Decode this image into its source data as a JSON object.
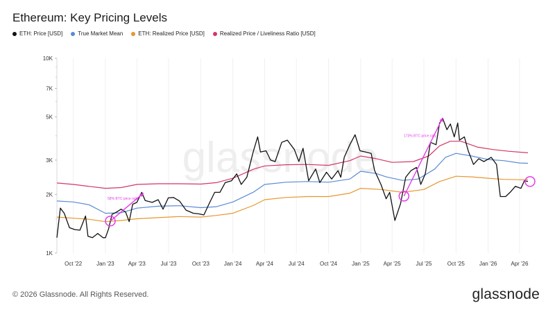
{
  "chart_data": {
    "type": "line",
    "title": "Ethereum: Key Pricing Levels",
    "xlabel": "",
    "ylabel": "",
    "y_scale": "log",
    "ylim": [
      1000,
      10000
    ],
    "y_ticks": [
      {
        "value": 1000,
        "label": "1K"
      },
      {
        "value": 2000,
        "label": "2K"
      },
      {
        "value": 3000,
        "label": "3K"
      },
      {
        "value": 5000,
        "label": "5K"
      },
      {
        "value": 7000,
        "label": "7K"
      },
      {
        "value": 10000,
        "label": "10K"
      }
    ],
    "xlim": [
      "2022-08-15",
      "2026-05-05"
    ],
    "x_ticks": [
      {
        "value": "2022-10-01",
        "label": "Oct '22"
      },
      {
        "value": "2023-01-01",
        "label": "Jan '23"
      },
      {
        "value": "2023-04-01",
        "label": "Apr '23"
      },
      {
        "value": "2023-07-01",
        "label": "Jul '23"
      },
      {
        "value": "2023-10-01",
        "label": "Oct '23"
      },
      {
        "value": "2024-01-01",
        "label": "Jan '24"
      },
      {
        "value": "2024-04-01",
        "label": "Apr '24"
      },
      {
        "value": "2024-07-01",
        "label": "Jul '24"
      },
      {
        "value": "2024-10-01",
        "label": "Oct '24"
      },
      {
        "value": "2025-01-01",
        "label": "Jan '25"
      },
      {
        "value": "2025-04-01",
        "label": "Apr '25"
      },
      {
        "value": "2025-07-01",
        "label": "Jul '25"
      },
      {
        "value": "2025-10-01",
        "label": "Oct '25"
      },
      {
        "value": "2026-01-01",
        "label": "Jan '26"
      },
      {
        "value": "2026-04-01",
        "label": "Apr '26"
      }
    ],
    "grid": "vertical",
    "legend_position": "top-left",
    "series": [
      {
        "name": "ETH: Price [USD]",
        "color": "#111111",
        "points": [
          [
            "2022-08-15",
            1200
          ],
          [
            "2022-08-25",
            1700
          ],
          [
            "2022-09-05",
            1600
          ],
          [
            "2022-09-20",
            1350
          ],
          [
            "2022-10-05",
            1320
          ],
          [
            "2022-10-20",
            1310
          ],
          [
            "2022-11-05",
            1550
          ],
          [
            "2022-11-12",
            1220
          ],
          [
            "2022-11-25",
            1200
          ],
          [
            "2022-12-10",
            1260
          ],
          [
            "2022-12-25",
            1200
          ],
          [
            "2023-01-01",
            1200
          ],
          [
            "2023-01-10",
            1330
          ],
          [
            "2023-01-20",
            1580
          ],
          [
            "2023-02-01",
            1620
          ],
          [
            "2023-02-15",
            1680
          ],
          [
            "2023-02-28",
            1620
          ],
          [
            "2023-03-10",
            1450
          ],
          [
            "2023-03-20",
            1780
          ],
          [
            "2023-04-01",
            1820
          ],
          [
            "2023-04-15",
            2050
          ],
          [
            "2023-04-25",
            1860
          ],
          [
            "2023-05-15",
            1820
          ],
          [
            "2023-06-01",
            1880
          ],
          [
            "2023-06-15",
            1680
          ],
          [
            "2023-06-30",
            1920
          ],
          [
            "2023-07-15",
            1930
          ],
          [
            "2023-08-01",
            1850
          ],
          [
            "2023-08-20",
            1660
          ],
          [
            "2023-09-10",
            1600
          ],
          [
            "2023-09-25",
            1590
          ],
          [
            "2023-10-10",
            1570
          ],
          [
            "2023-10-25",
            1790
          ],
          [
            "2023-11-10",
            2050
          ],
          [
            "2023-11-25",
            2050
          ],
          [
            "2023-12-10",
            2300
          ],
          [
            "2023-12-28",
            2350
          ],
          [
            "2024-01-12",
            2550
          ],
          [
            "2024-01-25",
            2250
          ],
          [
            "2024-02-10",
            2450
          ],
          [
            "2024-02-28",
            3300
          ],
          [
            "2024-03-12",
            3950
          ],
          [
            "2024-03-20",
            3300
          ],
          [
            "2024-04-05",
            3350
          ],
          [
            "2024-04-18",
            3000
          ],
          [
            "2024-05-01",
            2950
          ],
          [
            "2024-05-20",
            3700
          ],
          [
            "2024-06-05",
            3800
          ],
          [
            "2024-06-25",
            3400
          ],
          [
            "2024-07-08",
            2950
          ],
          [
            "2024-07-20",
            3450
          ],
          [
            "2024-08-05",
            2350
          ],
          [
            "2024-08-25",
            2700
          ],
          [
            "2024-09-06",
            2300
          ],
          [
            "2024-09-25",
            2600
          ],
          [
            "2024-10-10",
            2400
          ],
          [
            "2024-10-28",
            2650
          ],
          [
            "2024-11-05",
            2450
          ],
          [
            "2024-11-15",
            3100
          ],
          [
            "2024-12-01",
            3600
          ],
          [
            "2024-12-16",
            4050
          ],
          [
            "2024-12-30",
            3350
          ],
          [
            "2025-01-15",
            3300
          ],
          [
            "2025-01-31",
            3250
          ],
          [
            "2025-02-10",
            2650
          ],
          [
            "2025-02-28",
            2250
          ],
          [
            "2025-03-15",
            1900
          ],
          [
            "2025-03-25",
            2050
          ],
          [
            "2025-04-09",
            1470
          ],
          [
            "2025-04-25",
            1790
          ],
          [
            "2025-05-10",
            2450
          ],
          [
            "2025-05-25",
            2650
          ],
          [
            "2025-06-10",
            2750
          ],
          [
            "2025-06-22",
            2250
          ],
          [
            "2025-07-05",
            2550
          ],
          [
            "2025-07-20",
            3700
          ],
          [
            "2025-08-05",
            3600
          ],
          [
            "2025-08-15",
            4650
          ],
          [
            "2025-08-24",
            4900
          ],
          [
            "2025-09-05",
            4300
          ],
          [
            "2025-09-15",
            4600
          ],
          [
            "2025-09-26",
            3950
          ],
          [
            "2025-10-06",
            4650
          ],
          [
            "2025-10-11",
            3800
          ],
          [
            "2025-10-25",
            3950
          ],
          [
            "2025-11-05",
            3350
          ],
          [
            "2025-11-20",
            2850
          ],
          [
            "2025-12-05",
            3050
          ],
          [
            "2025-12-20",
            2950
          ],
          [
            "2026-01-10",
            3100
          ],
          [
            "2026-01-25",
            2850
          ],
          [
            "2026-02-05",
            1950
          ],
          [
            "2026-02-20",
            1950
          ],
          [
            "2026-03-05",
            2050
          ],
          [
            "2026-03-20",
            2200
          ],
          [
            "2026-04-05",
            2150
          ],
          [
            "2026-04-15",
            2350
          ],
          [
            "2026-04-25",
            2330
          ]
        ]
      },
      {
        "name": "True Market Mean",
        "color": "#5a8ad6",
        "points": [
          [
            "2022-08-15",
            1850
          ],
          [
            "2022-10-01",
            1830
          ],
          [
            "2022-11-15",
            1770
          ],
          [
            "2023-01-01",
            1600
          ],
          [
            "2023-02-15",
            1610
          ],
          [
            "2023-04-01",
            1700
          ],
          [
            "2023-06-01",
            1740
          ],
          [
            "2023-08-01",
            1750
          ],
          [
            "2023-10-01",
            1710
          ],
          [
            "2023-11-15",
            1730
          ],
          [
            "2024-01-01",
            1830
          ],
          [
            "2024-03-01",
            2060
          ],
          [
            "2024-04-01",
            2250
          ],
          [
            "2024-06-01",
            2310
          ],
          [
            "2024-08-01",
            2330
          ],
          [
            "2024-10-01",
            2310
          ],
          [
            "2024-12-01",
            2400
          ],
          [
            "2025-01-01",
            2630
          ],
          [
            "2025-02-15",
            2560
          ],
          [
            "2025-03-15",
            2460
          ],
          [
            "2025-05-01",
            2360
          ],
          [
            "2025-06-15",
            2400
          ],
          [
            "2025-08-01",
            2700
          ],
          [
            "2025-09-01",
            3100
          ],
          [
            "2025-10-01",
            3250
          ],
          [
            "2025-11-15",
            3150
          ],
          [
            "2026-01-01",
            3020
          ],
          [
            "2026-02-15",
            2980
          ],
          [
            "2026-04-01",
            2900
          ],
          [
            "2026-04-25",
            2890
          ]
        ]
      },
      {
        "name": "ETH: Realized Price [USD]",
        "color": "#e8962e",
        "points": [
          [
            "2022-08-15",
            1530
          ],
          [
            "2022-10-01",
            1510
          ],
          [
            "2022-11-15",
            1490
          ],
          [
            "2023-01-01",
            1450
          ],
          [
            "2023-02-15",
            1470
          ],
          [
            "2023-04-01",
            1500
          ],
          [
            "2023-06-01",
            1520
          ],
          [
            "2023-08-01",
            1540
          ],
          [
            "2023-10-01",
            1530
          ],
          [
            "2023-11-15",
            1560
          ],
          [
            "2024-01-01",
            1600
          ],
          [
            "2024-03-01",
            1760
          ],
          [
            "2024-04-01",
            1880
          ],
          [
            "2024-06-01",
            1930
          ],
          [
            "2024-08-01",
            1950
          ],
          [
            "2024-10-01",
            1950
          ],
          [
            "2024-12-01",
            2030
          ],
          [
            "2025-01-01",
            2150
          ],
          [
            "2025-03-01",
            2120
          ],
          [
            "2025-05-01",
            2050
          ],
          [
            "2025-07-01",
            2120
          ],
          [
            "2025-08-15",
            2330
          ],
          [
            "2025-10-01",
            2480
          ],
          [
            "2025-11-15",
            2460
          ],
          [
            "2026-01-01",
            2420
          ],
          [
            "2026-02-15",
            2390
          ],
          [
            "2026-04-01",
            2380
          ],
          [
            "2026-04-25",
            2375
          ]
        ]
      },
      {
        "name": "Realized Price / Liveliness Ratio [USD]",
        "color": "#d33665",
        "points": [
          [
            "2022-08-15",
            2290
          ],
          [
            "2022-10-01",
            2250
          ],
          [
            "2022-11-15",
            2200
          ],
          [
            "2023-01-01",
            2150
          ],
          [
            "2023-02-15",
            2170
          ],
          [
            "2023-04-01",
            2250
          ],
          [
            "2023-06-01",
            2270
          ],
          [
            "2023-08-01",
            2270
          ],
          [
            "2023-10-01",
            2260
          ],
          [
            "2023-11-15",
            2300
          ],
          [
            "2024-01-01",
            2420
          ],
          [
            "2024-03-01",
            2700
          ],
          [
            "2024-04-01",
            2800
          ],
          [
            "2024-06-01",
            2840
          ],
          [
            "2024-08-01",
            2850
          ],
          [
            "2024-10-01",
            2820
          ],
          [
            "2024-12-01",
            2980
          ],
          [
            "2025-01-01",
            3150
          ],
          [
            "2025-02-15",
            3050
          ],
          [
            "2025-04-01",
            2920
          ],
          [
            "2025-06-01",
            2950
          ],
          [
            "2025-07-15",
            3150
          ],
          [
            "2025-08-15",
            3550
          ],
          [
            "2025-09-15",
            3750
          ],
          [
            "2025-10-15",
            3750
          ],
          [
            "2025-12-01",
            3500
          ],
          [
            "2026-01-15",
            3400
          ],
          [
            "2026-03-01",
            3330
          ],
          [
            "2026-04-25",
            3270
          ]
        ]
      }
    ],
    "annotations": [
      {
        "text": "58% BTC price rally",
        "color": "#e33be8",
        "x": "2023-02-20",
        "y": 1880
      },
      {
        "text": "173% BTC price rally",
        "color": "#e33be8",
        "x": "2025-06-20",
        "y": 3950
      }
    ],
    "highlight_circles": [
      {
        "x": "2023-01-15",
        "y": 1460
      },
      {
        "x": "2025-05-05",
        "y": 1960
      },
      {
        "x": "2026-05-01",
        "y": 2330
      }
    ],
    "trend_arrows": [
      {
        "from": [
          "2023-01-15",
          1460
        ],
        "to": [
          "2023-04-20",
          2030
        ]
      },
      {
        "from": [
          "2025-05-05",
          1960
        ],
        "to": [
          "2025-08-24",
          4950
        ]
      }
    ],
    "watermark": "glassnode"
  },
  "footer": {
    "copyright": "© 2026 Glassnode. All Rights Reserved.",
    "brand": "glassnode"
  }
}
